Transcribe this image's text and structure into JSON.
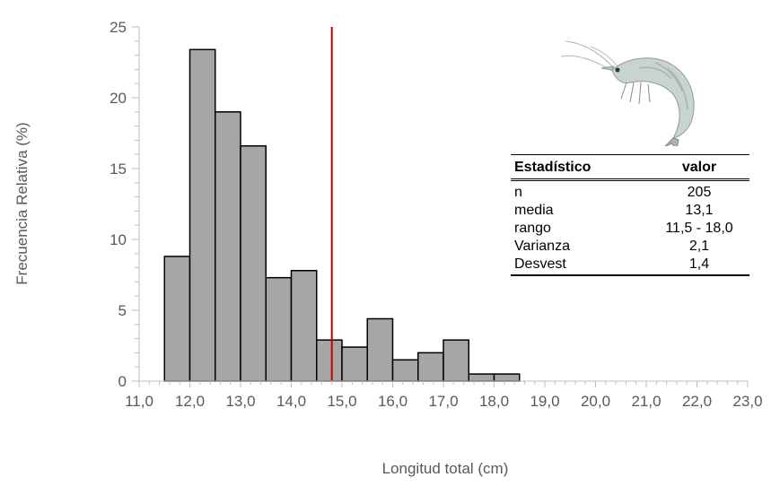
{
  "chart_data": {
    "type": "bar",
    "xlabel": "Longitud total (cm)",
    "ylabel": "Frecuencia Relativa (%)",
    "x_ticks": [
      "11,0",
      "12,0",
      "13,0",
      "14,0",
      "15,0",
      "16,0",
      "17,0",
      "18,0",
      "19,0",
      "20,0",
      "21,0",
      "22,0",
      "23,0"
    ],
    "y_ticks": [
      "0",
      "5",
      "10",
      "15",
      "20",
      "25"
    ],
    "xlim": [
      11.0,
      23.0
    ],
    "ylim": [
      0,
      25
    ],
    "bin_width": 0.5,
    "bins": [
      {
        "x0": 11.5,
        "value": 8.8
      },
      {
        "x0": 12.0,
        "value": 23.4
      },
      {
        "x0": 12.5,
        "value": 19.0
      },
      {
        "x0": 13.0,
        "value": 16.6
      },
      {
        "x0": 13.5,
        "value": 7.3
      },
      {
        "x0": 14.0,
        "value": 7.8
      },
      {
        "x0": 14.5,
        "value": 2.9
      },
      {
        "x0": 15.0,
        "value": 2.4
      },
      {
        "x0": 15.5,
        "value": 4.4
      },
      {
        "x0": 16.0,
        "value": 1.5
      },
      {
        "x0": 16.5,
        "value": 2.0
      },
      {
        "x0": 17.0,
        "value": 2.9
      },
      {
        "x0": 17.5,
        "value": 0.5
      },
      {
        "x0": 18.0,
        "value": 0.5
      }
    ],
    "reference_line_x": 14.8,
    "colors": {
      "bar_fill": "#a6a6a6",
      "bar_stroke": "#000000",
      "reference_line": "#c00000",
      "axis": "#bfbfbf",
      "text": "#595959"
    }
  },
  "stats_table": {
    "header": {
      "col1": "Estadístico",
      "col2": "valor"
    },
    "rows": [
      {
        "label": "n",
        "value": "205"
      },
      {
        "label": "media",
        "value": "13,1"
      },
      {
        "label": "rango",
        "value": "11,5 - 18,0"
      },
      {
        "label": "Varianza",
        "value": "2,1"
      },
      {
        "label": "Desvest",
        "value": "1,4"
      }
    ]
  },
  "image": {
    "icon": "shrimp-icon"
  }
}
